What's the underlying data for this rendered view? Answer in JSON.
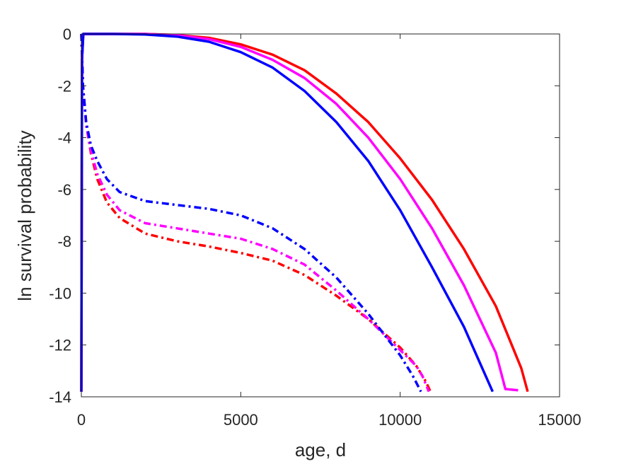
{
  "chart_data": {
    "type": "line",
    "xlabel": "age, d",
    "ylabel": "ln survival probability",
    "xlim": [
      0,
      15000
    ],
    "ylim": [
      -14,
      0
    ],
    "xticks": [
      0,
      5000,
      10000,
      15000
    ],
    "yticks": [
      0,
      -2,
      -4,
      -6,
      -8,
      -10,
      -12,
      -14
    ],
    "grid": false,
    "legend": "none",
    "series": [
      {
        "color": "#ff0000",
        "style": "solid",
        "points": [
          [
            0,
            -13.8
          ],
          [
            20,
            -1.0
          ],
          [
            60,
            0
          ],
          [
            1000,
            0
          ],
          [
            2000,
            0
          ],
          [
            3000,
            -0.04
          ],
          [
            4000,
            -0.15
          ],
          [
            5000,
            -0.4
          ],
          [
            6000,
            -0.8
          ],
          [
            7000,
            -1.4
          ],
          [
            8000,
            -2.3
          ],
          [
            9000,
            -3.4
          ],
          [
            10000,
            -4.8
          ],
          [
            11000,
            -6.4
          ],
          [
            12000,
            -8.3
          ],
          [
            13000,
            -10.5
          ],
          [
            13600,
            -12.3
          ],
          [
            13800,
            -12.9
          ],
          [
            14000,
            -13.8
          ]
        ]
      },
      {
        "color": "#ff00ff",
        "style": "solid",
        "points": [
          [
            0,
            -13.8
          ],
          [
            20,
            -1.0
          ],
          [
            60,
            0
          ],
          [
            1000,
            0
          ],
          [
            2000,
            0
          ],
          [
            3000,
            -0.05
          ],
          [
            4000,
            -0.2
          ],
          [
            5000,
            -0.5
          ],
          [
            6000,
            -1.0
          ],
          [
            7000,
            -1.7
          ],
          [
            8000,
            -2.7
          ],
          [
            9000,
            -4.0
          ],
          [
            10000,
            -5.6
          ],
          [
            11000,
            -7.5
          ],
          [
            12000,
            -9.7
          ],
          [
            13000,
            -12.3
          ],
          [
            13300,
            -13.7
          ],
          [
            13700,
            -13.75
          ]
        ]
      },
      {
        "color": "#0000ff",
        "style": "solid",
        "points": [
          [
            0,
            -13.8
          ],
          [
            20,
            -1.0
          ],
          [
            60,
            0
          ],
          [
            1000,
            0
          ],
          [
            2000,
            -0.02
          ],
          [
            3000,
            -0.1
          ],
          [
            4000,
            -0.3
          ],
          [
            5000,
            -0.7
          ],
          [
            6000,
            -1.3
          ],
          [
            7000,
            -2.2
          ],
          [
            8000,
            -3.4
          ],
          [
            9000,
            -4.9
          ],
          [
            10000,
            -6.8
          ],
          [
            11000,
            -9.0
          ],
          [
            12000,
            -11.3
          ],
          [
            12900,
            -13.8
          ]
        ]
      },
      {
        "color": "#ff0000",
        "style": "dashdot",
        "points": [
          [
            0,
            0
          ],
          [
            50,
            -2.0
          ],
          [
            150,
            -3.5
          ],
          [
            300,
            -4.6
          ],
          [
            500,
            -5.6
          ],
          [
            800,
            -6.5
          ],
          [
            1200,
            -7.1
          ],
          [
            2000,
            -7.7
          ],
          [
            3000,
            -8.0
          ],
          [
            4000,
            -8.2
          ],
          [
            5000,
            -8.45
          ],
          [
            6000,
            -8.75
          ],
          [
            7000,
            -9.3
          ],
          [
            8000,
            -10.1
          ],
          [
            9000,
            -11.0
          ],
          [
            10000,
            -12.1
          ],
          [
            10500,
            -12.8
          ],
          [
            10800,
            -13.4
          ],
          [
            10950,
            -13.8
          ]
        ]
      },
      {
        "color": "#ff00ff",
        "style": "dashdot",
        "points": [
          [
            0,
            0
          ],
          [
            50,
            -2.0
          ],
          [
            150,
            -3.5
          ],
          [
            300,
            -4.5
          ],
          [
            500,
            -5.4
          ],
          [
            800,
            -6.2
          ],
          [
            1200,
            -6.8
          ],
          [
            2000,
            -7.3
          ],
          [
            3000,
            -7.5
          ],
          [
            4000,
            -7.7
          ],
          [
            5000,
            -7.9
          ],
          [
            6000,
            -8.3
          ],
          [
            7000,
            -8.9
          ],
          [
            8000,
            -9.9
          ],
          [
            9000,
            -11.0
          ],
          [
            10000,
            -12.2
          ],
          [
            10500,
            -12.8
          ],
          [
            10700,
            -13.2
          ],
          [
            10900,
            -13.8
          ]
        ]
      },
      {
        "color": "#0000ff",
        "style": "dashdot",
        "points": [
          [
            0,
            0
          ],
          [
            50,
            -2.0
          ],
          [
            150,
            -3.4
          ],
          [
            300,
            -4.3
          ],
          [
            500,
            -4.9
          ],
          [
            800,
            -5.6
          ],
          [
            1200,
            -6.1
          ],
          [
            2000,
            -6.45
          ],
          [
            3000,
            -6.6
          ],
          [
            4000,
            -6.75
          ],
          [
            5000,
            -7.0
          ],
          [
            6000,
            -7.5
          ],
          [
            7000,
            -8.3
          ],
          [
            8000,
            -9.4
          ],
          [
            9000,
            -10.8
          ],
          [
            10000,
            -12.4
          ],
          [
            10400,
            -13.2
          ],
          [
            10650,
            -13.8
          ]
        ]
      }
    ]
  }
}
